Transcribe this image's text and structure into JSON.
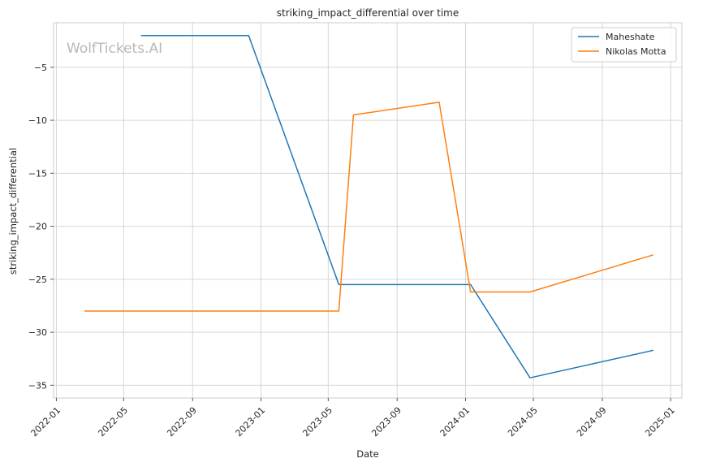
{
  "chart_data": {
    "type": "line",
    "title": "striking_impact_differential over time",
    "xlabel": "Date",
    "ylabel": "striking_impact_differential",
    "x_ticks": [
      "2022-01",
      "2022-05",
      "2022-09",
      "2023-01",
      "2023-05",
      "2023-09",
      "2024-01",
      "2024-05",
      "2024-09",
      "2025-01"
    ],
    "y_ticks": [
      -35,
      -30,
      -25,
      -20,
      -15,
      -10,
      -5
    ],
    "xlim": [
      "2021-12-27",
      "2025-01-21"
    ],
    "ylim": [
      -36.2,
      -0.8
    ],
    "grid": true,
    "legend_position": "top-right",
    "watermark": "WolfTickets.AI",
    "series": [
      {
        "name": "Maheshate",
        "color": "#1f77b4",
        "points": [
          {
            "x": "2022-06-01",
            "y": -2.0
          },
          {
            "x": "2022-12-10",
            "y": -2.0
          },
          {
            "x": "2023-05-20",
            "y": -25.5
          },
          {
            "x": "2024-01-10",
            "y": -25.5
          },
          {
            "x": "2024-04-25",
            "y": -34.3
          },
          {
            "x": "2024-12-01",
            "y": -31.7
          }
        ]
      },
      {
        "name": "Nikolas Motta",
        "color": "#ff7f0e",
        "points": [
          {
            "x": "2022-02-20",
            "y": -28.0
          },
          {
            "x": "2023-05-20",
            "y": -28.0
          },
          {
            "x": "2023-06-15",
            "y": -9.5
          },
          {
            "x": "2023-11-15",
            "y": -8.3
          },
          {
            "x": "2024-01-10",
            "y": -26.2
          },
          {
            "x": "2024-04-25",
            "y": -26.2
          },
          {
            "x": "2024-12-01",
            "y": -22.7
          }
        ]
      }
    ]
  }
}
